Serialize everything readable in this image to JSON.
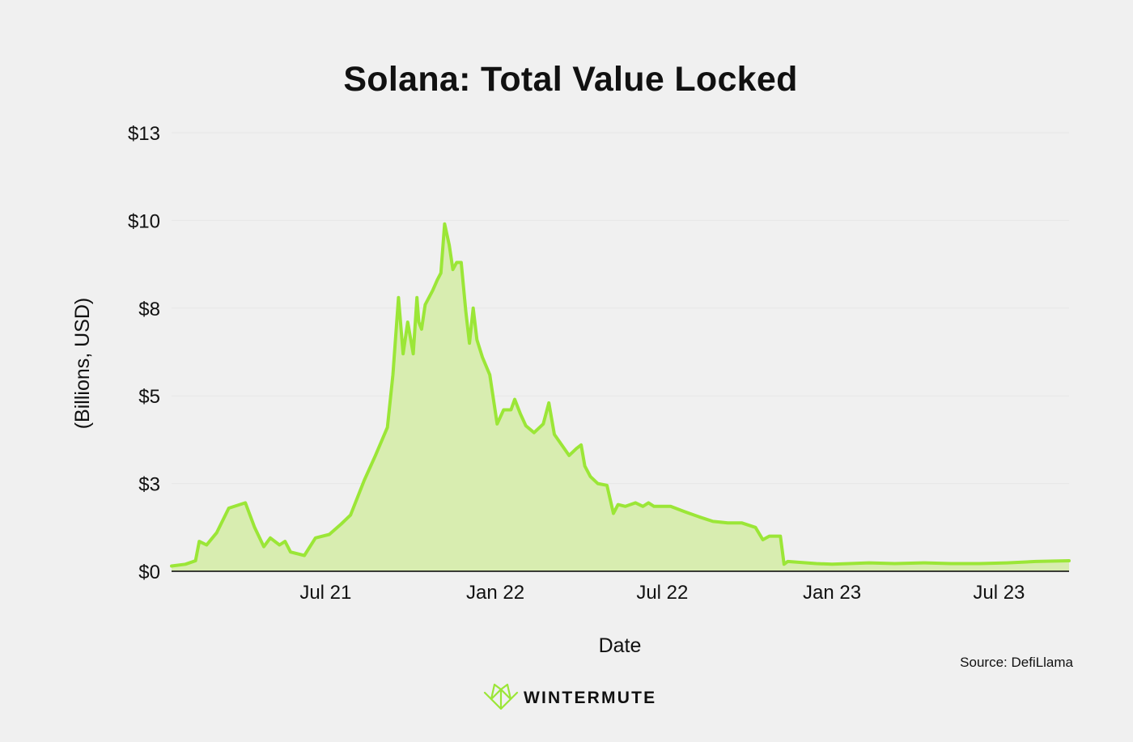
{
  "chart_data": {
    "type": "area",
    "title": "Solana: Total Value Locked",
    "xlabel": "Date",
    "ylabel": "(Billions, USD)",
    "yticks": [
      {
        "value": 0,
        "label": "$0"
      },
      {
        "value": 2.5,
        "label": "$3"
      },
      {
        "value": 5,
        "label": "$5"
      },
      {
        "value": 7.5,
        "label": "$8"
      },
      {
        "value": 10,
        "label": "$10"
      },
      {
        "value": 12.5,
        "label": "$13"
      }
    ],
    "ylim": [
      0,
      12.5
    ],
    "xlim": [
      "2021-01-15",
      "2023-09-15"
    ],
    "xticks": [
      {
        "value": "2021-07-01",
        "label": "Jul 21"
      },
      {
        "value": "2022-01-01",
        "label": "Jan 22"
      },
      {
        "value": "2022-07-01",
        "label": "Jul 22"
      },
      {
        "value": "2023-01-01",
        "label": "Jan 23"
      },
      {
        "value": "2023-07-01",
        "label": "Jul 23"
      }
    ],
    "grid": true,
    "line_color": "#9be637",
    "fill_color": "#d8edb0",
    "series": [
      {
        "x": [
          "2021-01-15",
          "2021-01-30",
          "2021-02-10",
          "2021-02-14",
          "2021-02-22",
          "2021-03-05",
          "2021-03-18",
          "2021-04-05",
          "2021-04-15",
          "2021-04-25",
          "2021-05-02",
          "2021-05-12",
          "2021-05-18",
          "2021-05-24",
          "2021-06-08",
          "2021-06-20",
          "2021-07-05",
          "2021-07-18",
          "2021-07-22",
          "2021-07-28",
          "2021-08-12",
          "2021-08-24",
          "2021-09-06",
          "2021-09-12",
          "2021-09-18",
          "2021-09-23",
          "2021-09-28",
          "2021-10-04",
          "2021-10-08",
          "2021-10-10",
          "2021-10-13",
          "2021-10-17",
          "2021-10-21",
          "2021-10-25",
          "2021-10-30",
          "2021-11-03",
          "2021-11-07",
          "2021-11-12",
          "2021-11-16",
          "2021-11-20",
          "2021-11-25",
          "2021-11-30",
          "2021-12-04",
          "2021-12-08",
          "2021-12-12",
          "2021-12-18",
          "2021-12-26",
          "2022-01-03",
          "2022-01-10",
          "2022-01-18",
          "2022-01-22",
          "2022-01-28",
          "2022-02-03",
          "2022-02-12",
          "2022-02-22",
          "2022-02-28",
          "2022-03-06",
          "2022-03-14",
          "2022-03-22",
          "2022-03-30",
          "2022-04-04",
          "2022-04-08",
          "2022-04-14",
          "2022-04-22",
          "2022-05-02",
          "2022-05-09",
          "2022-05-14",
          "2022-05-22",
          "2022-06-02",
          "2022-06-10",
          "2022-06-16",
          "2022-06-22",
          "2022-07-10",
          "2022-07-25",
          "2022-08-10",
          "2022-08-25",
          "2022-09-10",
          "2022-09-25",
          "2022-10-10",
          "2022-10-18",
          "2022-10-25",
          "2022-11-06",
          "2022-11-10",
          "2022-11-14",
          "2022-11-30",
          "2022-12-15",
          "2023-01-01",
          "2023-01-20",
          "2023-02-10",
          "2023-03-10",
          "2023-04-10",
          "2023-05-10",
          "2023-06-10",
          "2023-07-10",
          "2023-08-10",
          "2023-09-15"
        ],
        "y": [
          0.15,
          0.2,
          0.3,
          0.85,
          0.75,
          1.1,
          1.8,
          1.95,
          1.25,
          0.7,
          0.95,
          0.75,
          0.85,
          0.55,
          0.45,
          0.95,
          1.05,
          1.35,
          1.45,
          1.6,
          2.6,
          3.3,
          4.1,
          5.6,
          7.8,
          6.2,
          7.1,
          6.2,
          7.8,
          7.1,
          6.9,
          7.6,
          7.8,
          8.0,
          8.3,
          8.5,
          9.9,
          9.3,
          8.6,
          8.8,
          8.8,
          7.4,
          6.5,
          7.5,
          6.6,
          6.1,
          5.6,
          4.2,
          4.6,
          4.6,
          4.9,
          4.5,
          4.15,
          3.95,
          4.2,
          4.8,
          3.9,
          3.6,
          3.3,
          3.5,
          3.6,
          3.0,
          2.7,
          2.5,
          2.45,
          1.65,
          1.9,
          1.85,
          1.95,
          1.85,
          1.95,
          1.85,
          1.85,
          1.7,
          1.55,
          1.42,
          1.38,
          1.38,
          1.25,
          0.9,
          1.0,
          1.0,
          0.2,
          0.28,
          0.25,
          0.22,
          0.2,
          0.22,
          0.24,
          0.22,
          0.24,
          0.22,
          0.22,
          0.24,
          0.28,
          0.3
        ]
      }
    ],
    "source": "Source: DefiLlama",
    "brand": "WINTERMUTE"
  }
}
